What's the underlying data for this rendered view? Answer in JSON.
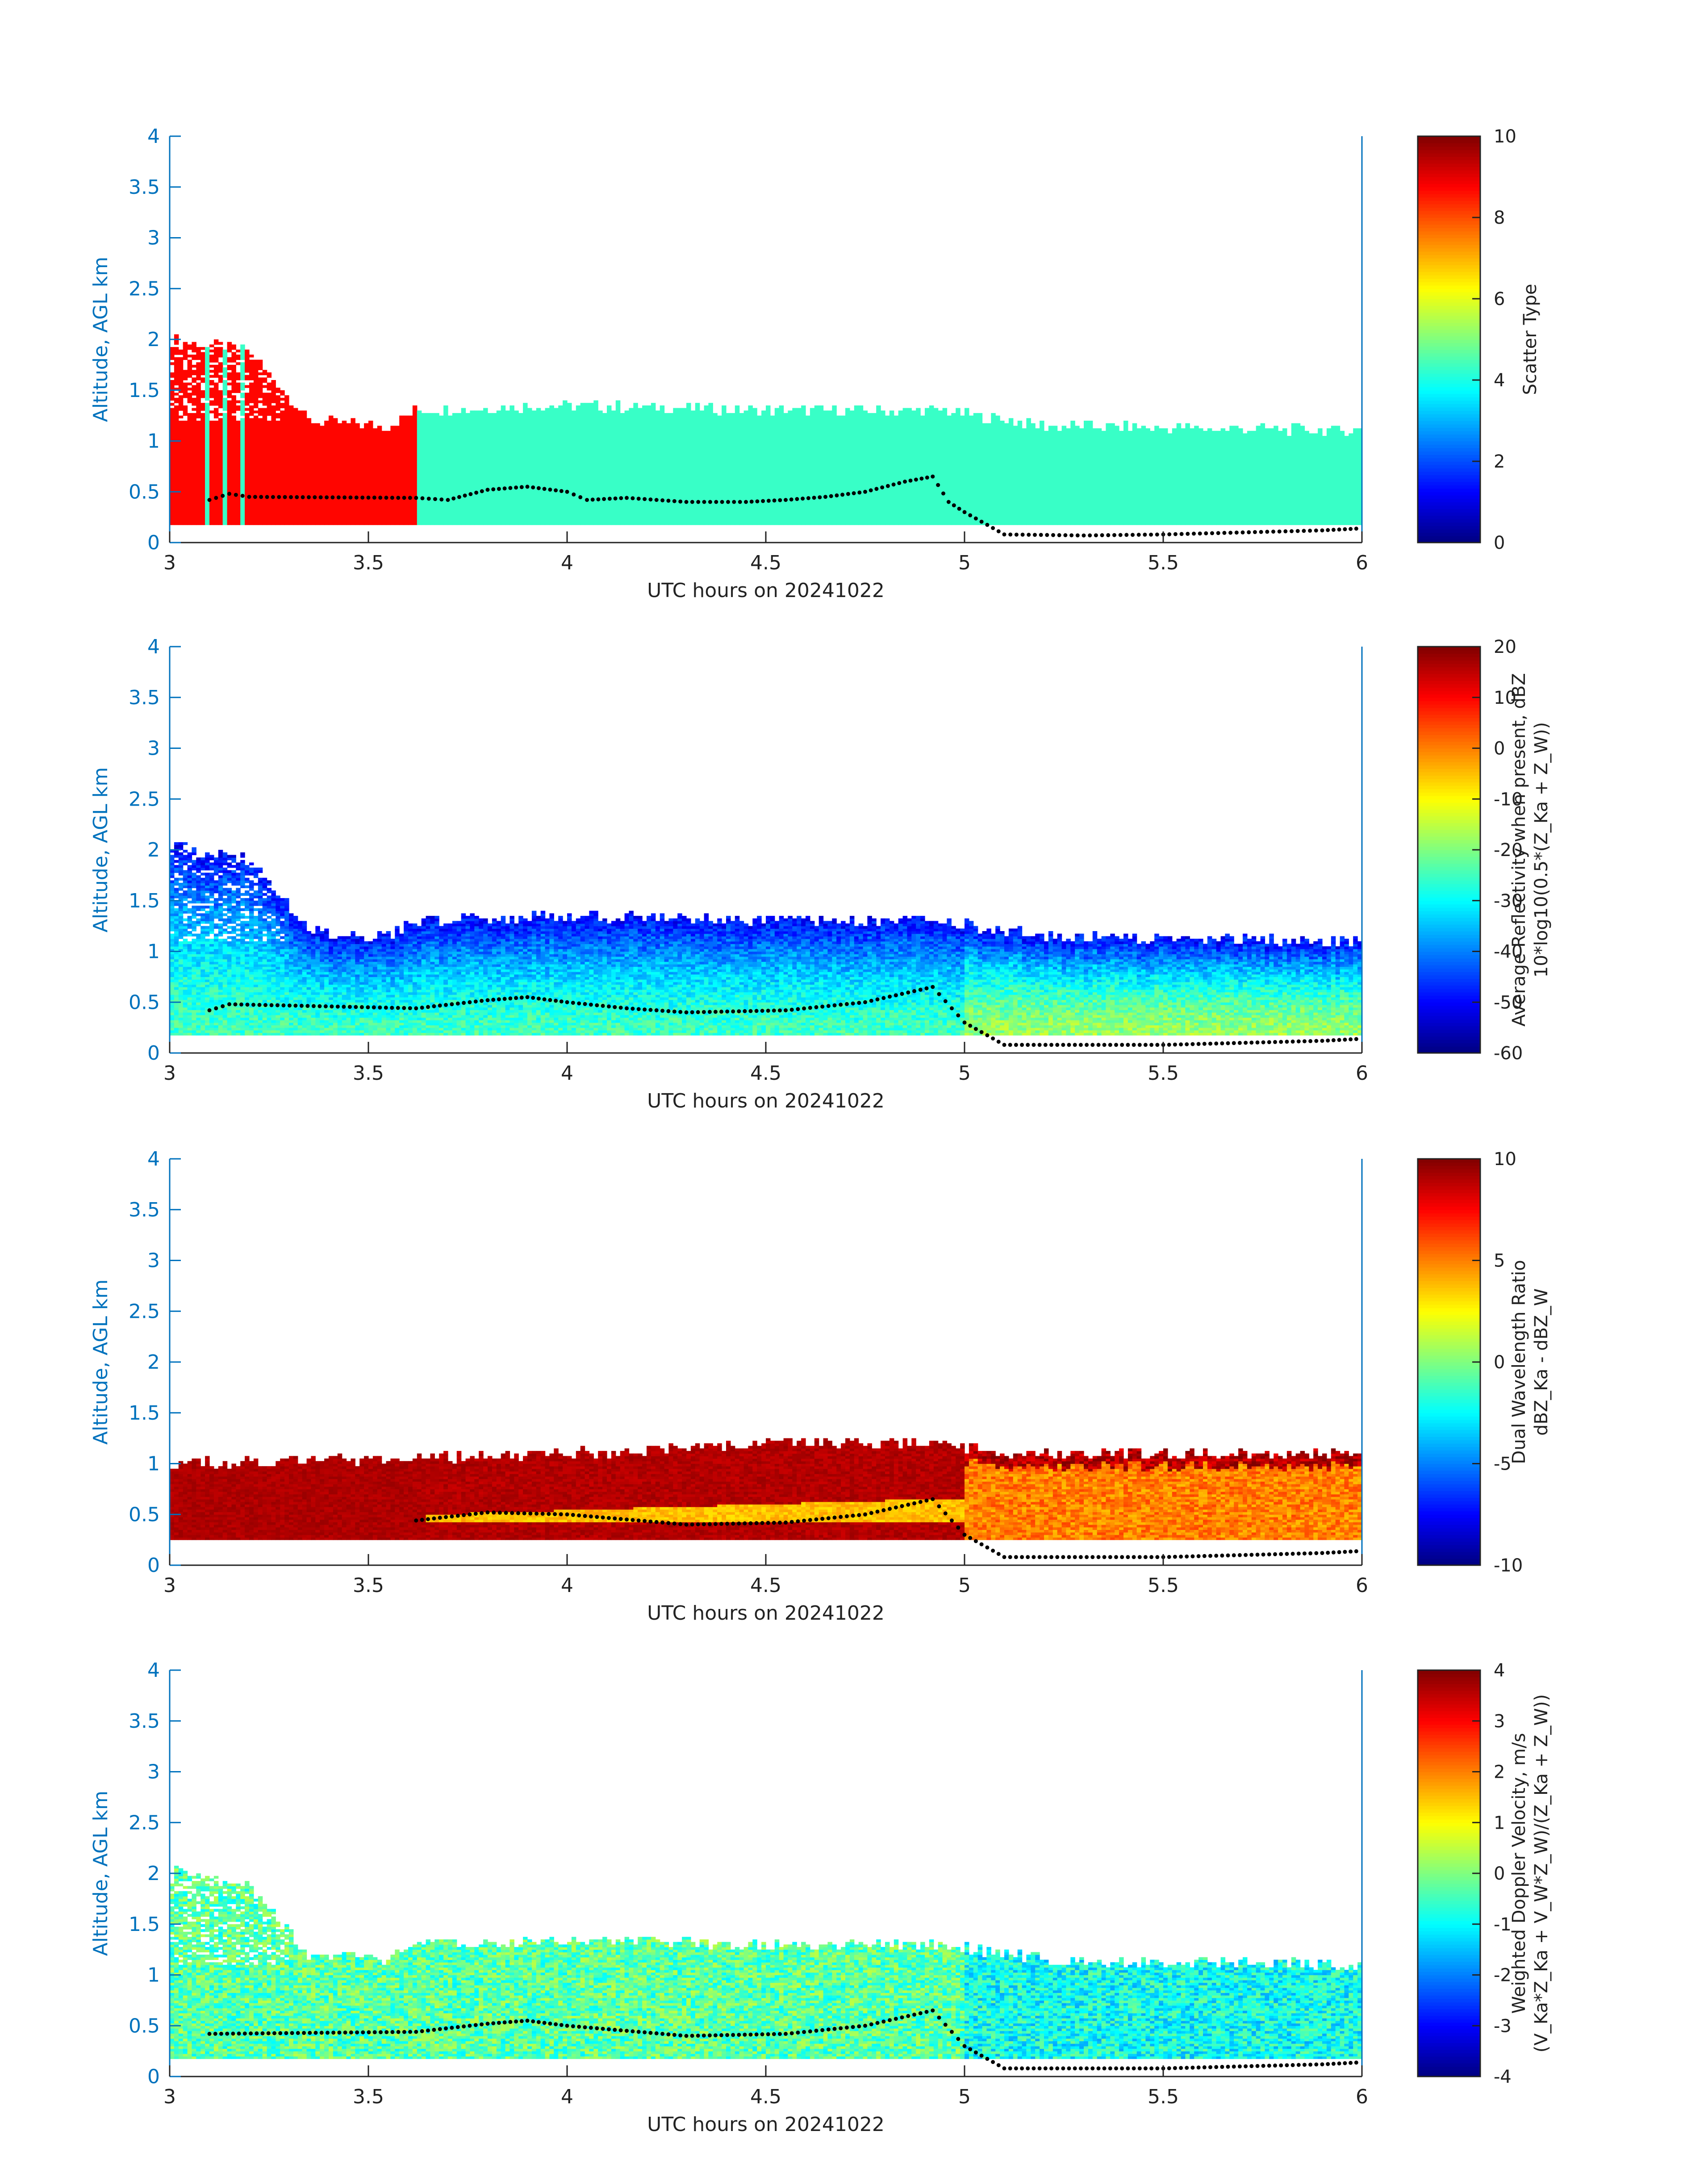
{
  "chart_data": [
    {
      "type": "heatmap",
      "title": "",
      "xlabel": "UTC hours on 20241022",
      "ylabel": "Altitude, AGL km",
      "xlim": [
        3,
        6
      ],
      "ylim": [
        0,
        4
      ],
      "xticks": [
        "3",
        "3.5",
        "4",
        "4.5",
        "5",
        "5.5",
        "6"
      ],
      "yticks": [
        "0",
        "0.5",
        "1",
        "1.5",
        "2",
        "2.5",
        "3",
        "3.5",
        "4"
      ],
      "colorbar": {
        "label_lines": [
          "Scatter Type"
        ],
        "range": [
          0,
          10
        ],
        "ticks": [
          "0",
          "2",
          "4",
          "6",
          "8",
          "10"
        ]
      },
      "colormap": "jet",
      "field": {
        "cloud_top_km": [
          [
            3.0,
            2.0
          ],
          [
            3.2,
            1.9
          ],
          [
            3.35,
            1.2
          ],
          [
            3.55,
            1.15
          ],
          [
            3.62,
            1.3
          ],
          [
            4.0,
            1.35
          ],
          [
            4.5,
            1.3
          ],
          [
            4.95,
            1.3
          ],
          [
            5.2,
            1.15
          ],
          [
            6.0,
            1.1
          ]
        ],
        "cloud_base_km": 0.18,
        "segments": [
          {
            "x": [
              3.0,
              3.62
            ],
            "value": 8.7
          },
          {
            "x": [
              3.62,
              6.0
            ],
            "value": 4.3
          }
        ]
      },
      "overlay_series": {
        "name": "",
        "points": [
          [
            3.1,
            0.42
          ],
          [
            3.15,
            0.48
          ],
          [
            3.2,
            0.45
          ],
          [
            3.62,
            0.44
          ],
          [
            3.7,
            0.42
          ],
          [
            3.8,
            0.52
          ],
          [
            3.9,
            0.55
          ],
          [
            4.0,
            0.5
          ],
          [
            4.05,
            0.42
          ],
          [
            4.15,
            0.44
          ],
          [
            4.3,
            0.4
          ],
          [
            4.45,
            0.4
          ],
          [
            4.55,
            0.42
          ],
          [
            4.65,
            0.45
          ],
          [
            4.75,
            0.5
          ],
          [
            4.85,
            0.6
          ],
          [
            4.92,
            0.65
          ],
          [
            4.96,
            0.4
          ],
          [
            5.0,
            0.3
          ],
          [
            5.1,
            0.08
          ],
          [
            5.3,
            0.07
          ],
          [
            5.5,
            0.08
          ],
          [
            5.7,
            0.1
          ],
          [
            5.9,
            0.12
          ],
          [
            6.0,
            0.14
          ]
        ]
      }
    },
    {
      "type": "heatmap",
      "title": "",
      "xlabel": "UTC hours on 20241022",
      "ylabel": "Altitude, AGL km",
      "xlim": [
        3,
        6
      ],
      "ylim": [
        0,
        4
      ],
      "xticks": [
        "3",
        "3.5",
        "4",
        "4.5",
        "5",
        "5.5",
        "6"
      ],
      "yticks": [
        "0",
        "0.5",
        "1",
        "1.5",
        "2",
        "2.5",
        "3",
        "3.5",
        "4"
      ],
      "colorbar": {
        "label_lines": [
          "Average Reflectivity when present, dBZ",
          "10*log10(0.5*(Z_Ka + Z_W))"
        ],
        "range": [
          -60,
          20
        ],
        "ticks": [
          "-60",
          "-50",
          "-40",
          "-30",
          "-20",
          "-10",
          "0",
          "10",
          "20"
        ]
      },
      "colormap": "jet",
      "field": {
        "cloud_top_km": [
          [
            3.0,
            2.05
          ],
          [
            3.2,
            1.9
          ],
          [
            3.35,
            1.2
          ],
          [
            3.55,
            1.15
          ],
          [
            3.62,
            1.3
          ],
          [
            4.0,
            1.35
          ],
          [
            4.5,
            1.3
          ],
          [
            4.95,
            1.3
          ],
          [
            5.2,
            1.15
          ],
          [
            6.0,
            1.1
          ]
        ],
        "cloud_base_km": 0.18,
        "top_value": -50,
        "bottom_value": -25,
        "bottom_value_late": -18
      },
      "overlay_series": {
        "name": "",
        "points": [
          [
            3.1,
            0.42
          ],
          [
            3.15,
            0.48
          ],
          [
            3.62,
            0.44
          ],
          [
            3.8,
            0.52
          ],
          [
            3.9,
            0.55
          ],
          [
            4.0,
            0.5
          ],
          [
            4.15,
            0.44
          ],
          [
            4.3,
            0.4
          ],
          [
            4.55,
            0.42
          ],
          [
            4.75,
            0.5
          ],
          [
            4.92,
            0.65
          ],
          [
            5.0,
            0.3
          ],
          [
            5.1,
            0.08
          ],
          [
            5.5,
            0.08
          ],
          [
            5.9,
            0.12
          ],
          [
            6.0,
            0.14
          ]
        ]
      }
    },
    {
      "type": "heatmap",
      "title": "",
      "xlabel": "UTC hours on 20241022",
      "ylabel": "Altitude, AGL km",
      "xlim": [
        3,
        6
      ],
      "ylim": [
        0,
        4
      ],
      "xticks": [
        "3",
        "3.5",
        "4",
        "4.5",
        "5",
        "5.5",
        "6"
      ],
      "yticks": [
        "0",
        "0.5",
        "1",
        "1.5",
        "2",
        "2.5",
        "3",
        "3.5",
        "4"
      ],
      "colorbar": {
        "label_lines": [
          "Dual Wavelength Ratio",
          "dBZ_Ka - dBZ_W"
        ],
        "range": [
          -10,
          10
        ],
        "ticks": [
          "-10",
          "-5",
          "0",
          "5",
          "10"
        ]
      },
      "colormap": "jet",
      "field": {
        "cloud_top_km": [
          [
            3.0,
            1.0
          ],
          [
            3.6,
            1.05
          ],
          [
            4.0,
            1.1
          ],
          [
            4.5,
            1.2
          ],
          [
            4.95,
            1.2
          ],
          [
            5.1,
            1.1
          ],
          [
            6.0,
            1.1
          ]
        ],
        "cloud_base_km": 0.25,
        "early_value": 9.5,
        "mid_low_value": 3.0,
        "late_value": 5.0
      },
      "overlay_series": {
        "name": "",
        "points": [
          [
            3.62,
            0.44
          ],
          [
            3.8,
            0.52
          ],
          [
            4.0,
            0.5
          ],
          [
            4.3,
            0.4
          ],
          [
            4.55,
            0.42
          ],
          [
            4.75,
            0.5
          ],
          [
            4.92,
            0.65
          ],
          [
            5.0,
            0.3
          ],
          [
            5.1,
            0.08
          ],
          [
            5.5,
            0.08
          ],
          [
            5.9,
            0.12
          ],
          [
            6.0,
            0.14
          ]
        ]
      }
    },
    {
      "type": "heatmap",
      "title": "",
      "xlabel": "UTC hours on 20241022",
      "ylabel": "Altitude, AGL km",
      "xlim": [
        3,
        6
      ],
      "ylim": [
        0,
        4
      ],
      "xticks": [
        "3",
        "3.5",
        "4",
        "4.5",
        "5",
        "5.5",
        "6"
      ],
      "yticks": [
        "0",
        "0.5",
        "1",
        "1.5",
        "2",
        "2.5",
        "3",
        "3.5",
        "4"
      ],
      "colorbar": {
        "label_lines": [
          "Weighted Doppler Velocity, m/s",
          "(V_Ka*Z_Ka + V_W*Z_W)/(Z_Ka + Z_W))"
        ],
        "range": [
          -4,
          4
        ],
        "ticks": [
          "-4",
          "-3",
          "-2",
          "-1",
          "0",
          "1",
          "2",
          "3",
          "4"
        ]
      },
      "colormap": "jet",
      "field": {
        "cloud_top_km": [
          [
            3.0,
            2.05
          ],
          [
            3.2,
            1.9
          ],
          [
            3.35,
            1.2
          ],
          [
            3.55,
            1.15
          ],
          [
            3.62,
            1.3
          ],
          [
            4.0,
            1.35
          ],
          [
            4.5,
            1.3
          ],
          [
            4.95,
            1.3
          ],
          [
            5.2,
            1.15
          ],
          [
            6.0,
            1.1
          ]
        ],
        "cloud_base_km": 0.18,
        "mean_value": -0.3,
        "late_value": -0.9
      },
      "overlay_series": {
        "name": "",
        "points": [
          [
            3.1,
            0.42
          ],
          [
            3.62,
            0.44
          ],
          [
            3.8,
            0.52
          ],
          [
            3.9,
            0.55
          ],
          [
            4.0,
            0.5
          ],
          [
            4.3,
            0.4
          ],
          [
            4.55,
            0.42
          ],
          [
            4.75,
            0.5
          ],
          [
            4.92,
            0.65
          ],
          [
            5.0,
            0.3
          ],
          [
            5.1,
            0.08
          ],
          [
            5.5,
            0.08
          ],
          [
            5.9,
            0.12
          ],
          [
            6.0,
            0.14
          ]
        ]
      }
    }
  ]
}
